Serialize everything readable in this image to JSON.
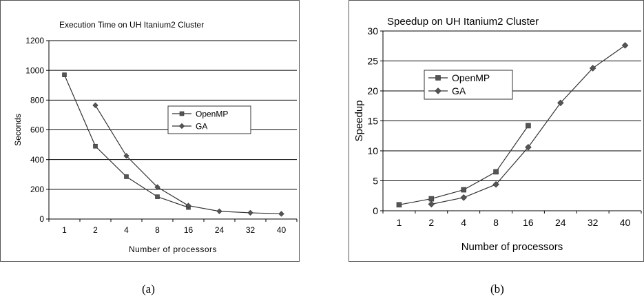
{
  "chart_data": [
    {
      "type": "line",
      "title": "Execution Time on UH Itanium2 Cluster",
      "xlabel": "Number of processors",
      "ylabel": "Seconds",
      "categories": [
        "1",
        "2",
        "4",
        "8",
        "16",
        "24",
        "32",
        "40"
      ],
      "ylim": [
        0,
        1200
      ],
      "yticks": [
        0,
        200,
        400,
        600,
        800,
        1000,
        1200
      ],
      "grid": true,
      "legend_position": "center-right",
      "series": [
        {
          "name": "OpenMP",
          "marker": "square",
          "values": [
            970,
            490,
            285,
            150,
            78,
            null,
            null,
            null
          ]
        },
        {
          "name": "GA",
          "marker": "diamond",
          "values": [
            null,
            765,
            425,
            215,
            90,
            52,
            42,
            35
          ]
        }
      ],
      "caption": "(a)"
    },
    {
      "type": "line",
      "title": "Speedup on UH Itanium2 Cluster",
      "xlabel": "Number of processors",
      "ylabel": "Speedup",
      "categories": [
        "1",
        "2",
        "4",
        "8",
        "16",
        "24",
        "32",
        "40"
      ],
      "ylim": [
        0,
        30
      ],
      "yticks": [
        0,
        5,
        10,
        15,
        20,
        25,
        30
      ],
      "grid": true,
      "legend_position": "top-left",
      "series": [
        {
          "name": "OpenMP",
          "marker": "square",
          "values": [
            1,
            2,
            3.5,
            6.5,
            14.2,
            null,
            null,
            null
          ]
        },
        {
          "name": "GA",
          "marker": "diamond",
          "values": [
            null,
            1.1,
            2.2,
            4.4,
            10.6,
            18,
            23.8,
            27.6
          ]
        }
      ],
      "caption": "(b)"
    }
  ]
}
